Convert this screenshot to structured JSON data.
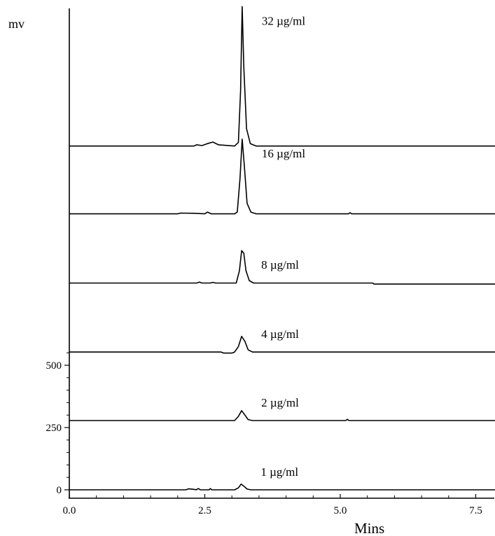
{
  "chart_data": {
    "type": "line",
    "title": "",
    "xlabel": "Mins",
    "ylabel": "mv",
    "xlim": [
      0,
      7.9
    ],
    "ylim": [
      0,
      1940
    ],
    "x_ticks": [
      0.0,
      2.5,
      5.0,
      7.5
    ],
    "x_tick_labels": [
      "0.0",
      "2.5",
      "5.0",
      "7.5"
    ],
    "y_ticks": [
      0,
      250,
      500
    ],
    "y_tick_labels": [
      "0",
      "250",
      "500"
    ],
    "grid": false,
    "series": [
      {
        "name": "1 µg/ml",
        "baseline": 0,
        "points": [
          [
            0,
            0
          ],
          [
            2.15,
            0
          ],
          [
            2.2,
            4
          ],
          [
            2.3,
            2
          ],
          [
            2.34,
            0
          ],
          [
            2.38,
            5
          ],
          [
            2.42,
            0
          ],
          [
            2.58,
            0
          ],
          [
            2.6,
            5
          ],
          [
            2.63,
            0
          ],
          [
            3.05,
            0
          ],
          [
            3.12,
            8
          ],
          [
            3.17,
            23
          ],
          [
            3.22,
            15
          ],
          [
            3.28,
            3
          ],
          [
            3.35,
            0
          ],
          [
            7.9,
            0
          ]
        ]
      },
      {
        "name": "2 µg/ml",
        "baseline": 278,
        "points": [
          [
            0,
            278
          ],
          [
            3.05,
            278
          ],
          [
            3.12,
            295
          ],
          [
            3.18,
            318
          ],
          [
            3.24,
            300
          ],
          [
            3.3,
            282
          ],
          [
            3.38,
            278
          ],
          [
            5.1,
            278
          ],
          [
            5.13,
            283
          ],
          [
            5.16,
            278
          ],
          [
            7.9,
            278
          ]
        ]
      },
      {
        "name": "4 µg/ml",
        "baseline": 553,
        "points": [
          [
            0,
            553
          ],
          [
            2.8,
            553
          ],
          [
            2.85,
            549
          ],
          [
            3.0,
            549
          ],
          [
            3.05,
            553
          ],
          [
            3.12,
            575
          ],
          [
            3.18,
            616
          ],
          [
            3.24,
            596
          ],
          [
            3.3,
            562
          ],
          [
            3.38,
            553
          ],
          [
            7.9,
            553
          ]
        ]
      },
      {
        "name": "8 µg/ml",
        "baseline": 830,
        "points": [
          [
            0,
            830
          ],
          [
            2.35,
            830
          ],
          [
            2.4,
            834
          ],
          [
            2.45,
            830
          ],
          [
            2.6,
            830
          ],
          [
            2.65,
            833
          ],
          [
            2.7,
            830
          ],
          [
            3.08,
            830
          ],
          [
            3.14,
            880
          ],
          [
            3.18,
            960
          ],
          [
            3.22,
            950
          ],
          [
            3.26,
            880
          ],
          [
            3.32,
            840
          ],
          [
            3.4,
            830
          ],
          [
            5.6,
            830
          ],
          [
            5.62,
            826
          ],
          [
            7.9,
            826
          ]
        ]
      },
      {
        "name": "16 µg/ml",
        "baseline": 1108,
        "points": [
          [
            0,
            1108
          ],
          [
            2.0,
            1108
          ],
          [
            2.05,
            1111
          ],
          [
            2.3,
            1110
          ],
          [
            2.5,
            1108
          ],
          [
            2.55,
            1115
          ],
          [
            2.62,
            1108
          ],
          [
            2.9,
            1108
          ],
          [
            3.05,
            1108
          ],
          [
            3.1,
            1115
          ],
          [
            3.15,
            1250
          ],
          [
            3.19,
            1408
          ],
          [
            3.23,
            1300
          ],
          [
            3.28,
            1150
          ],
          [
            3.35,
            1115
          ],
          [
            3.45,
            1108
          ],
          [
            5.15,
            1108
          ],
          [
            5.18,
            1112
          ],
          [
            5.21,
            1108
          ],
          [
            7.9,
            1108
          ]
        ]
      },
      {
        "name": "32 µg/ml",
        "baseline": 1380,
        "points": [
          [
            0,
            1380
          ],
          [
            2.3,
            1380
          ],
          [
            2.35,
            1385
          ],
          [
            2.45,
            1382
          ],
          [
            2.55,
            1390
          ],
          [
            2.65,
            1396
          ],
          [
            2.75,
            1385
          ],
          [
            3.05,
            1380
          ],
          [
            3.12,
            1395
          ],
          [
            3.16,
            1600
          ],
          [
            3.19,
            1940
          ],
          [
            3.22,
            1700
          ],
          [
            3.27,
            1450
          ],
          [
            3.34,
            1390
          ],
          [
            3.45,
            1380
          ],
          [
            7.9,
            1380
          ]
        ]
      }
    ]
  }
}
